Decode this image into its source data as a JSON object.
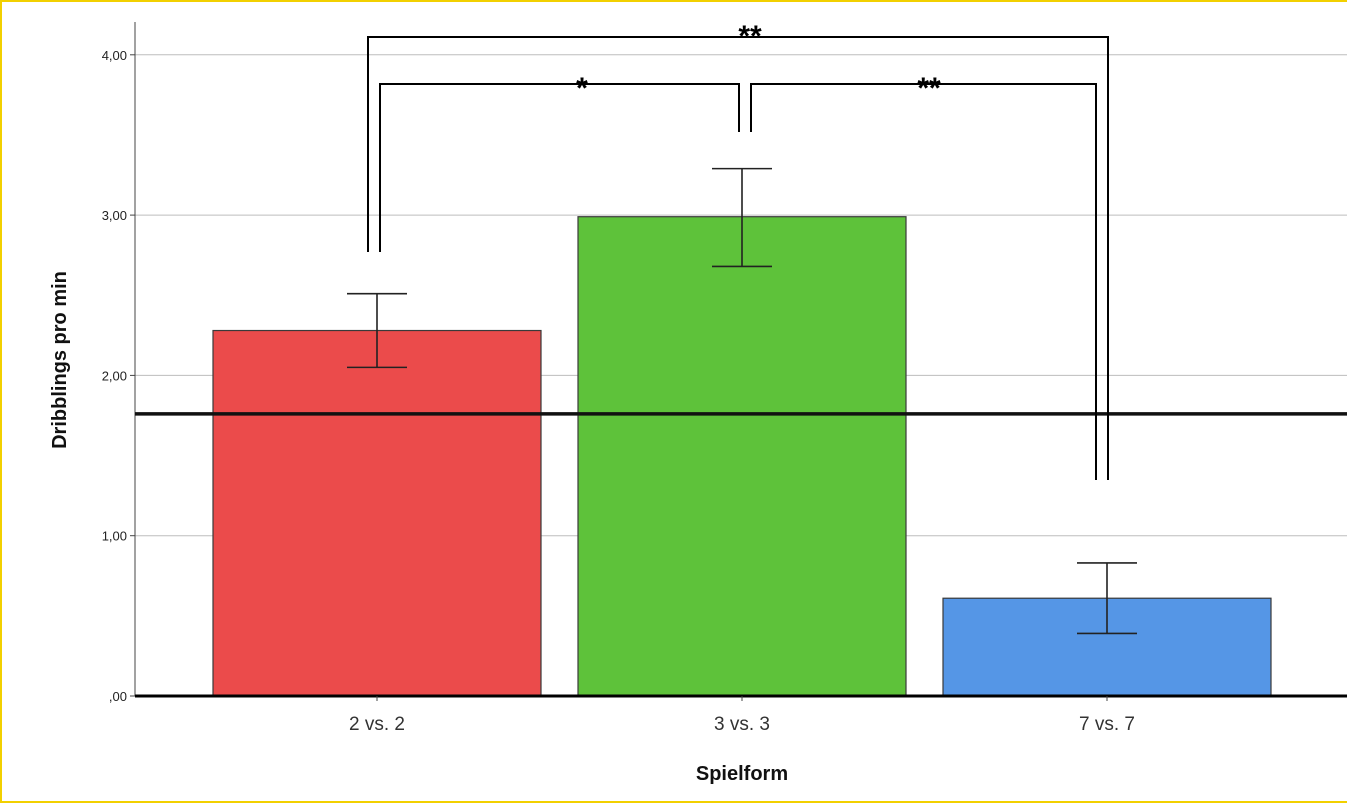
{
  "chart_data": {
    "type": "bar",
    "categories": [
      "2 vs. 2",
      "3 vs. 3",
      "7 vs. 7"
    ],
    "values": [
      2.28,
      2.99,
      0.61
    ],
    "errors_low": [
      2.05,
      2.68,
      0.39
    ],
    "errors_high": [
      2.51,
      3.29,
      0.83
    ],
    "colors": [
      "#eb4b4b",
      "#5ec23a",
      "#5596e6"
    ],
    "xlabel": "Spielform",
    "ylabel": "Dribblings pro min",
    "ylim": [
      0,
      4.2
    ],
    "yticks": [
      {
        "value": 0,
        "label": ",00"
      },
      {
        "value": 1,
        "label": "1,00"
      },
      {
        "value": 2,
        "label": "2,00"
      },
      {
        "value": 3,
        "label": "3,00"
      },
      {
        "value": 4,
        "label": "4,00"
      }
    ],
    "reference_line": 1.76,
    "grid": true,
    "significance": [
      {
        "from": 0,
        "to": 1,
        "label": "*"
      },
      {
        "from": 1,
        "to": 2,
        "label": "**"
      },
      {
        "from": 0,
        "to": 2,
        "label": "**"
      }
    ]
  }
}
